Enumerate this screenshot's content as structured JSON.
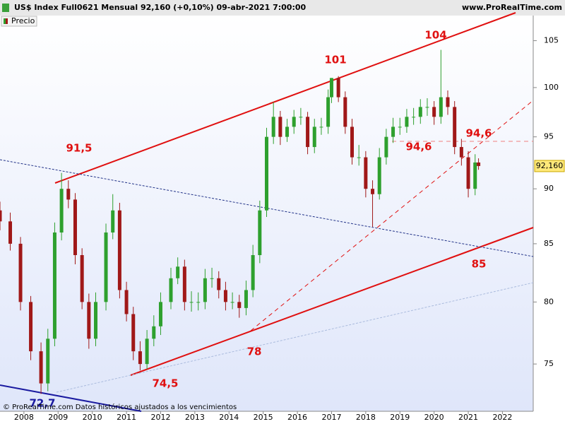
{
  "header": {
    "title": "US$ Index Full0621 Mensual 92,160 (+0,10%) 09-abr-2021 7:00:00",
    "site": "www.ProRealTime.com"
  },
  "footer": "© ProRealTime.com  Datos históricos ajustados a los vencimientos",
  "chart_data": {
    "type": "candlestick",
    "log": true,
    "legend": "top-left",
    "series": [
      {
        "name": "Precio",
        "up_color": "#2ea02e",
        "down_color": "#a01818",
        "x": [
          2007.3,
          2007.6,
          2007.9,
          2008.2,
          2008.5,
          2008.7,
          2008.9,
          2009.1,
          2009.3,
          2009.5,
          2009.7,
          2009.9,
          2010.1,
          2010.4,
          2010.6,
          2010.8,
          2011.0,
          2011.2,
          2011.4,
          2011.6,
          2011.8,
          2012.0,
          2012.3,
          2012.5,
          2012.7,
          2012.9,
          2013.1,
          2013.3,
          2013.5,
          2013.7,
          2013.9,
          2014.1,
          2014.3,
          2014.5,
          2014.7,
          2014.9,
          2015.1,
          2015.3,
          2015.5,
          2015.7,
          2015.9,
          2016.1,
          2016.3,
          2016.5,
          2016.7,
          2016.9,
          2017.0,
          2017.2,
          2017.4,
          2017.6,
          2017.8,
          2018.0,
          2018.2,
          2018.4,
          2018.6,
          2018.8,
          2019.0,
          2019.2,
          2019.4,
          2019.6,
          2019.8,
          2020.0,
          2020.2,
          2020.4,
          2020.6,
          2020.8,
          2021.0,
          2021.2,
          2021.3
        ],
        "open": [
          88,
          87,
          85,
          80,
          76,
          73.5,
          77,
          86,
          90,
          89,
          84,
          80,
          77,
          80,
          86,
          88,
          81,
          79,
          76,
          75,
          77,
          78,
          80,
          82,
          83,
          80,
          80,
          80,
          82,
          82,
          81,
          80,
          80,
          79.5,
          81,
          84,
          88,
          95,
          97,
          95,
          96,
          97,
          97,
          94,
          96,
          96,
          99,
          101,
          99,
          96,
          93,
          93,
          90,
          89.5,
          93,
          95,
          96,
          96,
          97,
          97,
          98,
          98,
          97,
          99,
          98,
          94,
          93,
          90,
          92.5
        ],
        "high": [
          88.8,
          87.8,
          85.6,
          80.5,
          76.7,
          77.8,
          86.9,
          91.5,
          90.8,
          89.6,
          84.6,
          80.7,
          80.8,
          86.8,
          89.5,
          88.7,
          81.7,
          79.6,
          76.8,
          77.7,
          78.9,
          80.8,
          82.9,
          83.8,
          83.6,
          80.9,
          80.8,
          82.8,
          82.9,
          82.6,
          81.7,
          80.8,
          80.6,
          81.8,
          84.9,
          88.9,
          95.9,
          98.5,
          97.6,
          96.8,
          97.7,
          97.9,
          97.5,
          96.8,
          96.9,
          99.8,
          101,
          101.2,
          99.6,
          96.8,
          94.2,
          93.6,
          90.8,
          93.9,
          95.8,
          96.9,
          96.9,
          97.8,
          97.9,
          98.8,
          98.9,
          98.6,
          104,
          99.7,
          98.6,
          94.8,
          93.6,
          93.3,
          92.9
        ],
        "low": [
          86.2,
          84.4,
          79.3,
          75.3,
          72.7,
          72.9,
          76.4,
          85.3,
          88.2,
          83.2,
          79.4,
          76.2,
          76.4,
          79.3,
          85.4,
          80.3,
          78.4,
          75.3,
          74.5,
          74.6,
          76.4,
          77.3,
          79.4,
          81.5,
          79.3,
          79.2,
          79.3,
          79.4,
          81.2,
          80.3,
          79.3,
          79.4,
          78.7,
          78.9,
          80.4,
          83.3,
          87.4,
          94.3,
          94.2,
          94.5,
          95.3,
          96.2,
          93.3,
          93.4,
          95.2,
          95.3,
          98.4,
          98.5,
          95.3,
          92.3,
          92.2,
          89.2,
          86.5,
          89,
          92.3,
          94.4,
          95.2,
          95.4,
          96.2,
          96.3,
          97.1,
          96.2,
          96.3,
          97.2,
          93.3,
          92.2,
          89.2,
          89.4,
          91.8
        ],
        "close": [
          87,
          85,
          80,
          76,
          73.5,
          77,
          86,
          90,
          89,
          84,
          80,
          77,
          80,
          86,
          88,
          81,
          79,
          76,
          75,
          77,
          78,
          80,
          82,
          83,
          80,
          80,
          80,
          82,
          82,
          81,
          80,
          80,
          79.5,
          81,
          84,
          88,
          95,
          97,
          95,
          96,
          97,
          97,
          94,
          96,
          96,
          99,
          101,
          99,
          96,
          93,
          93,
          90,
          89.5,
          93,
          95,
          96,
          96,
          97,
          97,
          98,
          98,
          97,
          99,
          98,
          94,
          93,
          90,
          92.5,
          92.16
        ],
        "last_label": {
          "value": 92.16,
          "label": "92,160"
        }
      }
    ],
    "xlim": [
      2007.3,
      2022.9
    ],
    "xticks": [
      2008,
      2009,
      2010,
      2011,
      2012,
      2013,
      2014,
      2015,
      2016,
      2017,
      2018,
      2019,
      2020,
      2021,
      2022
    ],
    "ylim": [
      71.4,
      108.1
    ],
    "yticks": [
      75,
      80,
      85,
      90,
      95,
      100,
      105
    ],
    "annotations": [
      "91,5",
      "101",
      "104",
      "94,6",
      "94,6",
      "78",
      "74,5",
      "85",
      "72,7"
    ]
  }
}
